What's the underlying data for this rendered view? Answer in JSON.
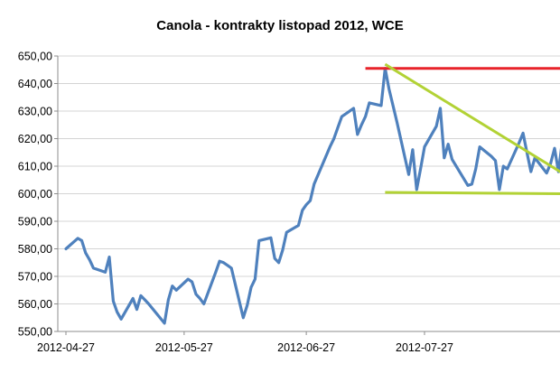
{
  "chart_data": {
    "type": "line",
    "title": "Canola - kontrakty listopad 2012, WCE",
    "xlabel": "",
    "ylabel": "",
    "ylim": [
      550,
      650
    ],
    "yticks": [
      "550,00",
      "560,00",
      "570,00",
      "580,00",
      "590,00",
      "600,00",
      "610,00",
      "620,00",
      "630,00",
      "640,00",
      "650,00"
    ],
    "xticks": [
      "2012-04-27",
      "2012-05-27",
      "2012-06-27",
      "2012-07-27"
    ],
    "grid": true,
    "legend": "none",
    "series": [
      {
        "color": "#4f81bd",
        "x": [
          "2012-04-27",
          "2012-04-30",
          "2012-05-01",
          "2012-05-02",
          "2012-05-03",
          "2012-05-04",
          "2012-05-07",
          "2012-05-08",
          "2012-05-09",
          "2012-05-10",
          "2012-05-11",
          "2012-05-14",
          "2012-05-15",
          "2012-05-16",
          "2012-05-17",
          "2012-05-18",
          "2012-05-22",
          "2012-05-23",
          "2012-05-24",
          "2012-05-25",
          "2012-05-28",
          "2012-05-29",
          "2012-05-30",
          "2012-05-31",
          "2012-06-01",
          "2012-06-04",
          "2012-06-05",
          "2012-06-06",
          "2012-06-07",
          "2012-06-08",
          "2012-06-11",
          "2012-06-12",
          "2012-06-13",
          "2012-06-14",
          "2012-06-15",
          "2012-06-18",
          "2012-06-19",
          "2012-06-20",
          "2012-06-21",
          "2012-06-22",
          "2012-06-25",
          "2012-06-26",
          "2012-06-27",
          "2012-06-28",
          "2012-06-29",
          "2012-07-03",
          "2012-07-04",
          "2012-07-05",
          "2012-07-06",
          "2012-07-09",
          "2012-07-10",
          "2012-07-11",
          "2012-07-12",
          "2012-07-13",
          "2012-07-16",
          "2012-07-17",
          "2012-07-18",
          "2012-07-19",
          "2012-07-20",
          "2012-07-23",
          "2012-07-24",
          "2012-07-25",
          "2012-07-26",
          "2012-07-27",
          "2012-07-30",
          "2012-07-31",
          "2012-08-01",
          "2012-08-02",
          "2012-08-03",
          "2012-08-07",
          "2012-08-08",
          "2012-08-09",
          "2012-08-10",
          "2012-08-13",
          "2012-08-14",
          "2012-08-15",
          "2012-08-16",
          "2012-08-17",
          "2012-08-20",
          "2012-08-21",
          "2012-08-22",
          "2012-08-23",
          "2012-08-24",
          "2012-08-27",
          "2012-08-28",
          "2012-08-29",
          "2012-08-30",
          "2012-08-31"
        ],
        "y": [
          580.0,
          583.8,
          583.0,
          578.5,
          576.0,
          573.0,
          571.5,
          577.0,
          561.0,
          557.0,
          554.5,
          562.0,
          558.0,
          563.0,
          561.5,
          560.0,
          553.0,
          561.5,
          566.5,
          565.0,
          569.0,
          568.0,
          563.5,
          562.0,
          560.0,
          571.5,
          575.5,
          575.0,
          574.0,
          573.0,
          555.0,
          559.5,
          566.0,
          569.0,
          583.0,
          584.0,
          576.5,
          575.0,
          579.5,
          586.0,
          588.5,
          594.0,
          596.0,
          597.5,
          603.5,
          617.0,
          620.0,
          624.0,
          628.0,
          631.0,
          621.5,
          625.0,
          628.0,
          633.0,
          632.0,
          645.5,
          638.0,
          632.0,
          626.0,
          607.0,
          616.0,
          601.5,
          609.0,
          617.0,
          624.5,
          631.0,
          613.0,
          618.0,
          612.5,
          603.0,
          603.5,
          609.0,
          617.0,
          613.5,
          612.0,
          601.5,
          610.0,
          609.0,
          618.5,
          622.0,
          615.0,
          608.0,
          613.0,
          607.5,
          611.0,
          616.5,
          608.0,
          619.5
        ]
      }
    ],
    "annotations": [
      {
        "kind": "resistance-line",
        "color": "#e8232a",
        "x": [
          "2012-07-12",
          "2012-08-31"
        ],
        "y": [
          645.5,
          645.5
        ]
      },
      {
        "kind": "trend-line",
        "color": "#b2d235",
        "x": [
          "2012-07-17",
          "2012-08-31"
        ],
        "y": [
          647.0,
          607.5
        ]
      },
      {
        "kind": "support-line",
        "color": "#b2d235",
        "x": [
          "2012-07-17",
          "2012-08-31"
        ],
        "y": [
          600.5,
          600.0
        ]
      }
    ]
  }
}
